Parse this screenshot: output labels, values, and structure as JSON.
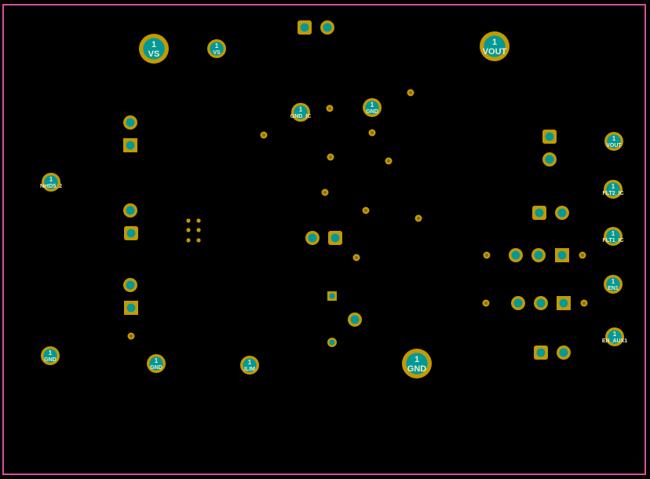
{
  "colors": {
    "background": "#000000",
    "board_outline": "#d9509c",
    "copper": "#c39a00",
    "drill": "#00999a",
    "label": "#f3efc0"
  },
  "labeled_pads": [
    {
      "pin": "1",
      "net": "VS"
    },
    {
      "pin": "1",
      "net": "VS"
    },
    {
      "pin": "1",
      "net": "GND_IC"
    },
    {
      "pin": "1",
      "net": "GND"
    },
    {
      "pin": "1",
      "net": "VOUT"
    },
    {
      "pin": "1",
      "net": "VOUT"
    },
    {
      "pin": "1",
      "net": "FLT2_IC"
    },
    {
      "pin": "1",
      "net": "FLT1_IC"
    },
    {
      "pin": "1",
      "net": "EN1"
    },
    {
      "pin": "1",
      "net": "EN_AUX1"
    },
    {
      "pin": "1",
      "net": "NetD5_2"
    },
    {
      "pin": "1",
      "net": "GND"
    },
    {
      "pin": "1",
      "net": "GND"
    },
    {
      "pin": "1",
      "net": "ILIM"
    },
    {
      "pin": "1",
      "net": "GND"
    }
  ]
}
